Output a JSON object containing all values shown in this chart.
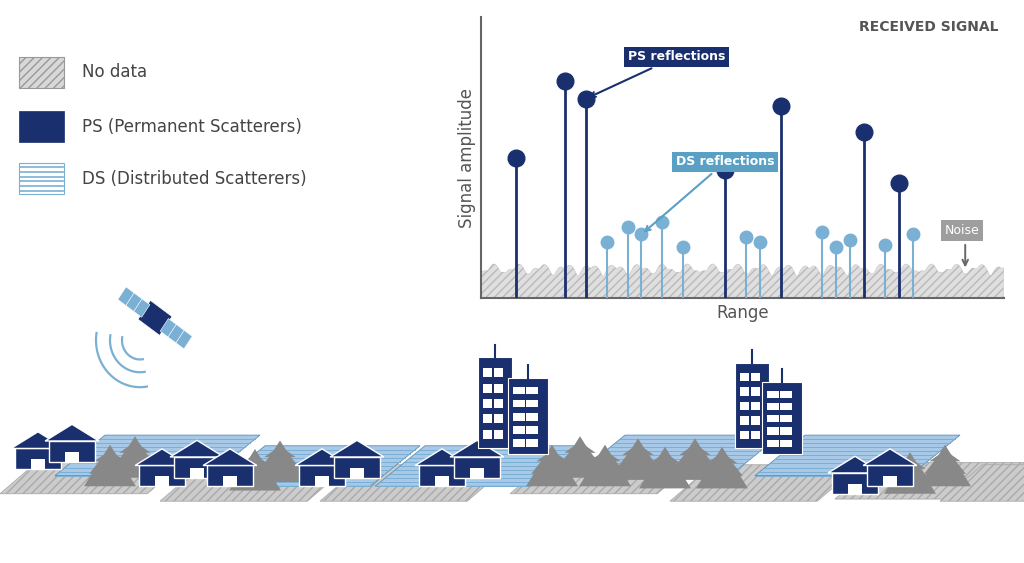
{
  "background_color": "#ffffff",
  "legend": {
    "no_data_label": "No data",
    "ps_label": "PS (Permanent Scatterers)",
    "ds_label": "DS (Distributed Scatterers)",
    "no_data_color": "#d0d0d0",
    "ps_color": "#1a2f6e",
    "ds_line_color": "#7ab0d4"
  },
  "signal_chart": {
    "title": "RECEIVED SIGNAL",
    "xlabel": "Range",
    "ylabel": "Signal amplitude",
    "ps_color": "#1a2f6e",
    "ds_color": "#7ab0d4",
    "ps_label": "PS reflections",
    "ds_label": "DS reflections",
    "noise_label": "Noise",
    "ps_heights": [
      0.55,
      0.85,
      0.78,
      0.5,
      0.75,
      0.65,
      0.45
    ],
    "ps_x": [
      0.5,
      1.2,
      1.5,
      3.5,
      4.3,
      5.5,
      6.0
    ],
    "ds_heights": [
      0.22,
      0.28,
      0.25,
      0.3,
      0.2,
      0.24,
      0.22,
      0.26,
      0.2,
      0.23,
      0.21,
      0.25
    ],
    "ds_x": [
      1.8,
      2.1,
      2.3,
      2.6,
      2.9,
      3.8,
      4.0,
      4.9,
      5.1,
      5.3,
      5.8,
      6.2
    ],
    "noise_level": 0.08,
    "xlim": [
      0,
      7.5
    ],
    "ylim": [
      0,
      1.1
    ]
  },
  "scene": {
    "ps_color": "#1a2f6e",
    "ds_tile_color": "#a8c8e8",
    "ds_tile_line_color": "#7ab0d4",
    "nd_tile_color": "#cccccc",
    "tree_color": "#888888",
    "sat_body_color": "#1a2f6e",
    "sat_panel_color": "#7ab0d4",
    "sat_wave_color": "#7ab0d4"
  }
}
